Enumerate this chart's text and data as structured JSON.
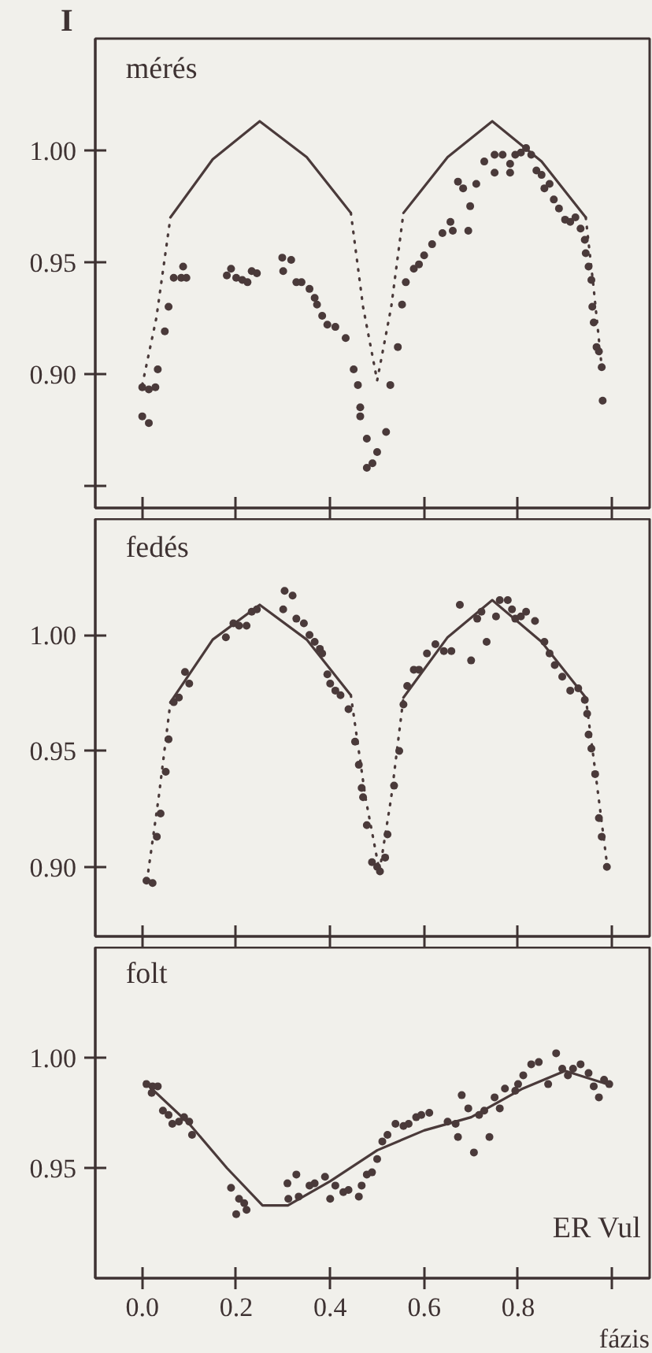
{
  "chart_data": [
    {
      "type": "scatter",
      "title": "mérés",
      "ylabel": "I",
      "xlim": [
        -0.1,
        1.08
      ],
      "ylim": [
        0.84,
        1.05
      ],
      "xticks": [
        0.0,
        0.2,
        0.4,
        0.6,
        0.8,
        1.0
      ],
      "yticks": [
        {
          "value": 0.85,
          "label": null
        },
        {
          "value": 0.9,
          "label": "0.90"
        },
        {
          "value": 0.95,
          "label": "0.95"
        },
        {
          "value": 1.0,
          "label": "1.00"
        }
      ],
      "tick_labels": "y",
      "series": [
        {
          "marker": "circle",
          "color": "#4a3a3a",
          "x": [
            0.0,
            0.014,
            0.0,
            0.014,
            0.028,
            0.033,
            0.048,
            0.056,
            0.067,
            0.083,
            0.094,
            0.087,
            0.18,
            0.189,
            0.2,
            0.213,
            0.224,
            0.233,
            0.244,
            0.298,
            0.317,
            0.3,
            0.328,
            0.339,
            0.356,
            0.367,
            0.372,
            0.383,
            0.394,
            0.411,
            0.433,
            0.45,
            0.459,
            0.464,
            0.464,
            0.478,
            0.478,
            0.49,
            0.5,
            0.519,
            0.528,
            0.544,
            0.553,
            0.561,
            0.578,
            0.589,
            0.6,
            0.617,
            0.639,
            0.656,
            0.661,
            0.694,
            0.698,
            0.672,
            0.683,
            0.711,
            0.728,
            0.75,
            0.75,
            0.767,
            0.783,
            0.783,
            0.794,
            0.806,
            0.817,
            0.828,
            0.839,
            0.85,
            0.856,
            0.867,
            0.876,
            0.887,
            0.9,
            0.911,
            0.922,
            0.933,
            0.942,
            0.944,
            0.95,
            0.956,
            0.958,
            0.961,
            0.967,
            0.972,
            0.978,
            0.98
          ],
          "values": [
            0.881,
            0.878,
            0.894,
            0.893,
            0.894,
            0.902,
            0.919,
            0.93,
            0.943,
            0.943,
            0.943,
            0.948,
            0.944,
            0.947,
            0.943,
            0.942,
            0.941,
            0.946,
            0.945,
            0.952,
            0.951,
            0.946,
            0.941,
            0.941,
            0.938,
            0.934,
            0.931,
            0.926,
            0.922,
            0.921,
            0.916,
            0.902,
            0.895,
            0.885,
            0.881,
            0.871,
            0.858,
            0.86,
            0.865,
            0.874,
            0.895,
            0.912,
            0.931,
            0.941,
            0.947,
            0.949,
            0.953,
            0.958,
            0.963,
            0.968,
            0.964,
            0.964,
            0.975,
            0.986,
            0.983,
            0.985,
            0.995,
            0.99,
            0.998,
            0.998,
            0.99,
            0.994,
            0.998,
            0.999,
            1.001,
            0.998,
            0.991,
            0.989,
            0.983,
            0.985,
            0.978,
            0.974,
            0.969,
            0.968,
            0.97,
            0.965,
            0.96,
            0.954,
            0.948,
            0.942,
            0.93,
            0.923,
            0.912,
            0.91,
            0.903,
            0.888
          ]
        },
        {
          "type": "line",
          "line_style": "solid",
          "color": "#4a3a3a",
          "x": [
            0.06,
            0.15,
            0.25,
            0.35,
            0.444,
            0.5,
            0.556,
            0.65,
            0.745,
            0.85,
            0.944
          ],
          "values": [
            0.97,
            0.996,
            1.013,
            0.997,
            0.972,
            null,
            0.972,
            0.997,
            1.013,
            0.995,
            0.97
          ]
        },
        {
          "type": "line",
          "line_style": "dotted",
          "color": "#4a3a3a",
          "x": [
            0.0,
            0.03,
            0.06,
            0.25,
            0.444,
            0.47,
            0.5,
            0.53,
            0.556,
            0.75,
            0.944,
            0.96,
            0.978
          ],
          "values": [
            0.895,
            0.925,
            0.97,
            null,
            0.972,
            0.93,
            0.897,
            0.93,
            0.972,
            null,
            0.97,
            0.94,
            0.903
          ]
        }
      ]
    },
    {
      "type": "scatter",
      "title": "fedés",
      "xlim": [
        -0.1,
        1.08
      ],
      "ylim": [
        0.87,
        1.05
      ],
      "xticks": [
        0.0,
        0.2,
        0.4,
        0.6,
        0.8,
        1.0
      ],
      "yticks": [
        {
          "value": 0.9,
          "label": "0.90"
        },
        {
          "value": 0.95,
          "label": "0.95"
        },
        {
          "value": 1.0,
          "label": "1.00"
        }
      ],
      "tick_labels": "y",
      "series": [
        {
          "marker": "circle",
          "color": "#4a3a3a",
          "x": [
            0.009,
            0.022,
            0.031,
            0.039,
            0.05,
            0.056,
            0.067,
            0.078,
            0.091,
            0.1,
            0.178,
            0.194,
            0.206,
            0.222,
            0.233,
            0.244,
            0.3,
            0.303,
            0.32,
            0.328,
            0.344,
            0.356,
            0.367,
            0.378,
            0.383,
            0.394,
            0.4,
            0.411,
            0.422,
            0.439,
            0.453,
            0.461,
            0.467,
            0.47,
            0.478,
            0.489,
            0.5,
            0.506,
            0.517,
            0.522,
            0.536,
            0.547,
            0.556,
            0.564,
            0.578,
            0.589,
            0.606,
            0.624,
            0.642,
            0.658,
            0.676,
            0.7,
            0.713,
            0.722,
            0.733,
            0.753,
            0.761,
            0.778,
            0.787,
            0.794,
            0.806,
            0.817,
            0.836,
            0.856,
            0.867,
            0.878,
            0.894,
            0.911,
            0.928,
            0.942,
            0.947,
            0.95,
            0.956,
            0.964,
            0.972,
            0.978,
            0.989
          ],
          "values": [
            0.894,
            0.893,
            0.913,
            0.923,
            0.941,
            0.955,
            0.971,
            0.973,
            0.984,
            0.979,
            0.999,
            1.005,
            1.004,
            1.004,
            1.01,
            1.011,
            1.011,
            1.019,
            1.017,
            1.007,
            1.005,
            1.0,
            0.997,
            0.994,
            0.992,
            0.983,
            0.979,
            0.976,
            0.974,
            0.968,
            0.954,
            0.944,
            0.934,
            0.93,
            0.918,
            0.902,
            0.9,
            0.898,
            0.904,
            0.914,
            0.935,
            0.95,
            0.97,
            0.978,
            0.985,
            0.985,
            0.992,
            0.996,
            0.993,
            0.993,
            1.013,
            0.989,
            1.007,
            1.01,
            0.997,
            1.008,
            1.015,
            1.015,
            1.011,
            1.007,
            1.008,
            1.01,
            1.006,
            0.997,
            0.992,
            0.987,
            0.982,
            0.976,
            0.977,
            0.972,
            0.966,
            0.957,
            0.951,
            0.94,
            0.921,
            0.913,
            0.9
          ]
        },
        {
          "type": "line",
          "line_style": "solid",
          "color": "#4a3a3a",
          "x": [
            0.06,
            0.15,
            0.25,
            0.35,
            0.444,
            0.5,
            0.556,
            0.65,
            0.745,
            0.85,
            0.944
          ],
          "values": [
            0.971,
            0.998,
            1.013,
            0.998,
            0.974,
            null,
            0.973,
            0.999,
            1.015,
            0.997,
            0.973
          ]
        },
        {
          "type": "line",
          "line_style": "dotted",
          "color": "#4a3a3a",
          "x": [
            0.01,
            0.035,
            0.06,
            0.25,
            0.444,
            0.475,
            0.505,
            0.53,
            0.556,
            0.75,
            0.944,
            0.965,
            0.99
          ],
          "values": [
            0.894,
            0.93,
            0.971,
            null,
            0.974,
            0.93,
            0.898,
            0.93,
            0.973,
            null,
            0.973,
            0.94,
            0.9
          ]
        }
      ]
    },
    {
      "type": "scatter",
      "title": "folt",
      "xlabel": "fázis",
      "annotations": [
        "ER Vul"
      ],
      "xlim": [
        -0.1,
        1.08
      ],
      "ylim": [
        0.9,
        1.05
      ],
      "xticks": [
        {
          "value": 0.0,
          "label": "0.0"
        },
        {
          "value": 0.2,
          "label": "0.2"
        },
        {
          "value": 0.4,
          "label": "0.4"
        },
        {
          "value": 0.6,
          "label": "0.6"
        },
        {
          "value": 0.8,
          "label": "0.8"
        },
        {
          "value": 1.0,
          "label": null
        }
      ],
      "yticks": [
        {
          "value": 0.95,
          "label": "0.95"
        },
        {
          "value": 1.0,
          "label": "1.00"
        }
      ],
      "series": [
        {
          "marker": "circle",
          "color": "#4a3a3a",
          "x": [
            0.009,
            0.022,
            0.033,
            0.02,
            0.044,
            0.056,
            0.064,
            0.078,
            0.089,
            0.1,
            0.106,
            0.189,
            0.206,
            0.217,
            0.2,
            0.222,
            0.309,
            0.328,
            0.311,
            0.333,
            0.356,
            0.367,
            0.389,
            0.4,
            0.411,
            0.428,
            0.439,
            0.467,
            0.461,
            0.478,
            0.489,
            0.5,
            0.511,
            0.522,
            0.539,
            0.556,
            0.567,
            0.583,
            0.594,
            0.611,
            0.65,
            0.667,
            0.672,
            0.68,
            0.694,
            0.706,
            0.717,
            0.728,
            0.739,
            0.75,
            0.761,
            0.772,
            0.794,
            0.8,
            0.811,
            0.828,
            0.844,
            0.864,
            0.881,
            0.894,
            0.906,
            0.917,
            0.933,
            0.95,
            0.961,
            0.972,
            0.983,
            0.994
          ],
          "values": [
            0.988,
            0.987,
            0.987,
            0.984,
            0.976,
            0.974,
            0.97,
            0.971,
            0.973,
            0.971,
            0.965,
            0.941,
            0.936,
            0.934,
            0.929,
            0.931,
            0.943,
            0.947,
            0.936,
            0.937,
            0.942,
            0.943,
            0.946,
            0.936,
            0.942,
            0.939,
            0.94,
            0.942,
            0.937,
            0.947,
            0.948,
            0.954,
            0.962,
            0.965,
            0.97,
            0.969,
            0.97,
            0.973,
            0.974,
            0.975,
            0.971,
            0.97,
            0.964,
            0.983,
            0.977,
            0.957,
            0.974,
            0.976,
            0.964,
            0.982,
            0.977,
            0.986,
            0.985,
            0.988,
            0.992,
            0.997,
            0.998,
            0.988,
            1.002,
            0.995,
            0.992,
            0.995,
            0.997,
            0.993,
            0.987,
            0.982,
            0.99,
            0.988
          ]
        },
        {
          "type": "line",
          "line_style": "solid",
          "color": "#4a3a3a",
          "x": [
            0.005,
            0.1,
            0.18,
            0.256,
            0.31,
            0.4,
            0.5,
            0.6,
            0.7,
            0.81,
            0.9,
            0.99
          ],
          "values": [
            0.989,
            0.97,
            0.95,
            0.933,
            0.933,
            0.944,
            0.958,
            0.967,
            0.973,
            0.986,
            0.994,
            0.988
          ]
        }
      ]
    }
  ]
}
